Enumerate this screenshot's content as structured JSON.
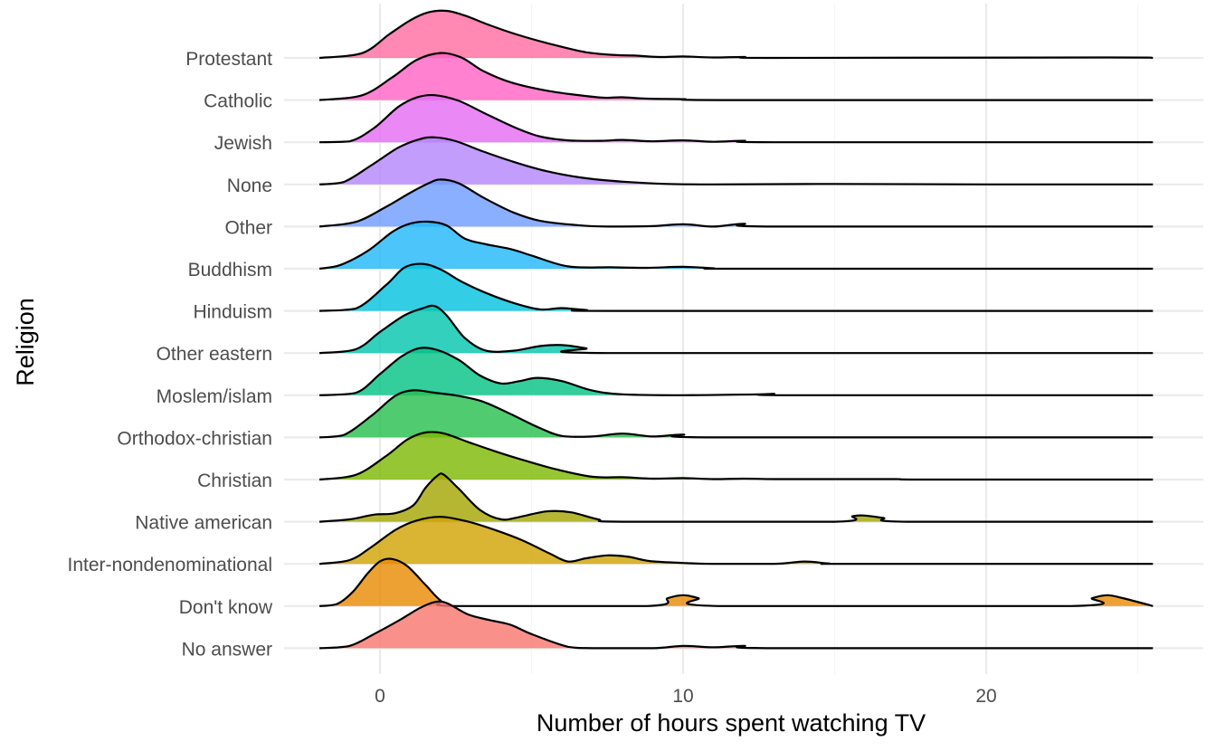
{
  "chart_data": {
    "type": "ridgeline",
    "xlabel": "Number of hours spent watching TV",
    "ylabel": "Religion",
    "xlim": [
      -3.2,
      27.2
    ],
    "x_ticks": [
      0,
      10,
      20
    ],
    "x_tick_labels": [
      "0",
      "10",
      "20"
    ],
    "x_minor_ticks": [
      5,
      15,
      25
    ],
    "grid": true,
    "legend": "none",
    "series": [
      {
        "name": "Protestant",
        "color": "#FF6C9F",
        "density": [
          [
            -2.0,
            0.0
          ],
          [
            -0.6,
            0.1
          ],
          [
            0.3,
            0.5
          ],
          [
            1.0,
            0.8
          ],
          [
            1.6,
            0.97
          ],
          [
            2.2,
            1.0
          ],
          [
            2.8,
            0.9
          ],
          [
            3.6,
            0.7
          ],
          [
            4.5,
            0.5
          ],
          [
            5.6,
            0.3
          ],
          [
            6.8,
            0.12
          ],
          [
            7.8,
            0.06
          ],
          [
            8.4,
            0.05
          ],
          [
            9.2,
            0.02
          ],
          [
            10.0,
            0.03
          ],
          [
            11.0,
            0.01
          ],
          [
            12.0,
            0.02
          ],
          [
            13.0,
            0.0
          ],
          [
            24.0,
            0.01
          ],
          [
            25.5,
            0.0
          ]
        ]
      },
      {
        "name": "Catholic",
        "color": "#FF61C4",
        "density": [
          [
            -2.0,
            0.0
          ],
          [
            -0.6,
            0.1
          ],
          [
            0.4,
            0.48
          ],
          [
            1.2,
            0.85
          ],
          [
            2.0,
            1.0
          ],
          [
            2.7,
            0.9
          ],
          [
            3.4,
            0.62
          ],
          [
            4.3,
            0.38
          ],
          [
            5.5,
            0.2
          ],
          [
            6.6,
            0.1
          ],
          [
            7.4,
            0.05
          ],
          [
            8.0,
            0.06
          ],
          [
            8.8,
            0.03
          ],
          [
            10.0,
            0.02
          ],
          [
            11.5,
            0.0
          ],
          [
            25.5,
            0.0
          ]
        ]
      },
      {
        "name": "Jewish",
        "color": "#E56AF4",
        "density": [
          [
            -2.0,
            0.0
          ],
          [
            -1.0,
            0.02
          ],
          [
            -0.2,
            0.3
          ],
          [
            0.6,
            0.75
          ],
          [
            1.2,
            0.95
          ],
          [
            1.8,
            1.0
          ],
          [
            2.6,
            0.88
          ],
          [
            3.5,
            0.6
          ],
          [
            4.5,
            0.3
          ],
          [
            5.3,
            0.12
          ],
          [
            6.2,
            0.04
          ],
          [
            7.3,
            0.03
          ],
          [
            8.0,
            0.05
          ],
          [
            9.0,
            0.02
          ],
          [
            10.0,
            0.04
          ],
          [
            11.0,
            0.01
          ],
          [
            12.0,
            0.03
          ],
          [
            13.0,
            0.0
          ],
          [
            25.5,
            0.0
          ]
        ]
      },
      {
        "name": "None",
        "color": "#B384FA",
        "density": [
          [
            -2.0,
            0.0
          ],
          [
            -1.2,
            0.05
          ],
          [
            -0.3,
            0.4
          ],
          [
            0.6,
            0.78
          ],
          [
            1.3,
            0.96
          ],
          [
            1.8,
            1.0
          ],
          [
            2.5,
            0.92
          ],
          [
            3.4,
            0.7
          ],
          [
            4.4,
            0.48
          ],
          [
            5.5,
            0.28
          ],
          [
            6.8,
            0.13
          ],
          [
            8.2,
            0.05
          ],
          [
            9.5,
            0.01
          ],
          [
            11.0,
            0.0
          ],
          [
            15.0,
            0.01
          ],
          [
            20.0,
            0.0
          ],
          [
            25.5,
            0.0
          ]
        ]
      },
      {
        "name": "Other",
        "color": "#6E9BFF",
        "density": [
          [
            -2.0,
            0.0
          ],
          [
            -0.8,
            0.1
          ],
          [
            0.2,
            0.42
          ],
          [
            1.0,
            0.72
          ],
          [
            1.6,
            0.92
          ],
          [
            2.0,
            1.0
          ],
          [
            2.6,
            0.92
          ],
          [
            3.4,
            0.62
          ],
          [
            4.4,
            0.3
          ],
          [
            5.3,
            0.12
          ],
          [
            6.5,
            0.03
          ],
          [
            7.5,
            0.0
          ],
          [
            9.0,
            0.01
          ],
          [
            10.0,
            0.05
          ],
          [
            11.0,
            0.0
          ],
          [
            12.0,
            0.06
          ],
          [
            13.0,
            0.0
          ],
          [
            25.5,
            0.0
          ]
        ]
      },
      {
        "name": "Buddhism",
        "color": "#1FB8F9",
        "density": [
          [
            -2.0,
            0.0
          ],
          [
            -1.3,
            0.08
          ],
          [
            -0.4,
            0.38
          ],
          [
            0.4,
            0.78
          ],
          [
            1.0,
            0.96
          ],
          [
            1.6,
            1.0
          ],
          [
            2.2,
            0.92
          ],
          [
            2.8,
            0.64
          ],
          [
            3.5,
            0.52
          ],
          [
            4.3,
            0.42
          ],
          [
            5.0,
            0.28
          ],
          [
            6.2,
            0.05
          ],
          [
            7.6,
            0.03
          ],
          [
            8.8,
            0.02
          ],
          [
            10.0,
            0.04
          ],
          [
            11.0,
            0.01
          ],
          [
            12.0,
            0.0
          ],
          [
            25.5,
            0.0
          ]
        ]
      },
      {
        "name": "Hinduism",
        "color": "#00C0E0",
        "density": [
          [
            -2.0,
            0.0
          ],
          [
            -0.8,
            0.05
          ],
          [
            0.2,
            0.55
          ],
          [
            0.8,
            0.92
          ],
          [
            1.4,
            1.0
          ],
          [
            2.0,
            0.88
          ],
          [
            2.7,
            0.62
          ],
          [
            3.5,
            0.38
          ],
          [
            4.5,
            0.15
          ],
          [
            5.3,
            0.03
          ],
          [
            6.0,
            0.06
          ],
          [
            6.8,
            0.02
          ],
          [
            8.0,
            0.0
          ],
          [
            25.5,
            0.0
          ]
        ]
      },
      {
        "name": "Other eastern",
        "color": "#00C4AE",
        "density": [
          [
            -2.0,
            0.0
          ],
          [
            -0.8,
            0.08
          ],
          [
            0.0,
            0.45
          ],
          [
            0.8,
            0.8
          ],
          [
            1.4,
            0.95
          ],
          [
            1.8,
            1.0
          ],
          [
            2.2,
            0.8
          ],
          [
            2.8,
            0.32
          ],
          [
            3.5,
            0.05
          ],
          [
            4.4,
            0.05
          ],
          [
            5.3,
            0.15
          ],
          [
            6.0,
            0.17
          ],
          [
            6.8,
            0.1
          ],
          [
            7.5,
            0.0
          ],
          [
            25.5,
            0.0
          ]
        ]
      },
      {
        "name": "Moslem/islam",
        "color": "#00C283",
        "density": [
          [
            -2.0,
            0.0
          ],
          [
            -0.8,
            0.05
          ],
          [
            0.0,
            0.45
          ],
          [
            0.7,
            0.82
          ],
          [
            1.3,
            1.0
          ],
          [
            1.9,
            0.96
          ],
          [
            2.6,
            0.75
          ],
          [
            3.3,
            0.42
          ],
          [
            4.0,
            0.25
          ],
          [
            4.6,
            0.3
          ],
          [
            5.2,
            0.37
          ],
          [
            6.0,
            0.3
          ],
          [
            7.0,
            0.1
          ],
          [
            8.0,
            0.02
          ],
          [
            10.0,
            0.0
          ],
          [
            12.5,
            0.02
          ],
          [
            13.0,
            0.03
          ],
          [
            13.5,
            0.0
          ],
          [
            25.5,
            0.0
          ]
        ]
      },
      {
        "name": "Orthodox-christian",
        "color": "#24BE4C",
        "density": [
          [
            -2.0,
            0.0
          ],
          [
            -1.2,
            0.05
          ],
          [
            -0.3,
            0.45
          ],
          [
            0.5,
            0.88
          ],
          [
            1.1,
            1.0
          ],
          [
            1.8,
            0.95
          ],
          [
            2.6,
            0.88
          ],
          [
            3.4,
            0.76
          ],
          [
            4.3,
            0.5
          ],
          [
            5.2,
            0.22
          ],
          [
            6.0,
            0.03
          ],
          [
            7.0,
            0.02
          ],
          [
            8.0,
            0.08
          ],
          [
            9.0,
            0.02
          ],
          [
            10.0,
            0.06
          ],
          [
            11.0,
            0.0
          ],
          [
            25.5,
            0.0
          ]
        ]
      },
      {
        "name": "Christian",
        "color": "#7CB800",
        "density": [
          [
            -2.0,
            0.0
          ],
          [
            -0.8,
            0.1
          ],
          [
            0.2,
            0.5
          ],
          [
            0.9,
            0.85
          ],
          [
            1.5,
            1.0
          ],
          [
            2.1,
            0.98
          ],
          [
            2.9,
            0.8
          ],
          [
            3.8,
            0.6
          ],
          [
            4.8,
            0.4
          ],
          [
            5.8,
            0.22
          ],
          [
            7.0,
            0.06
          ],
          [
            8.0,
            0.05
          ],
          [
            9.0,
            0.02
          ],
          [
            10.0,
            0.03
          ],
          [
            11.0,
            0.01
          ],
          [
            12.0,
            0.02
          ],
          [
            13.0,
            0.01
          ],
          [
            15.0,
            0.01
          ],
          [
            17.0,
            0.01
          ],
          [
            18.0,
            0.0
          ],
          [
            25.5,
            0.0
          ]
        ]
      },
      {
        "name": "Native american",
        "color": "#A3A500",
        "density": [
          [
            -2.0,
            0.0
          ],
          [
            -1.0,
            0.05
          ],
          [
            -0.2,
            0.15
          ],
          [
            0.5,
            0.18
          ],
          [
            1.1,
            0.35
          ],
          [
            1.5,
            0.72
          ],
          [
            1.9,
            0.98
          ],
          [
            2.1,
            1.0
          ],
          [
            2.6,
            0.7
          ],
          [
            3.3,
            0.25
          ],
          [
            4.0,
            0.05
          ],
          [
            4.6,
            0.1
          ],
          [
            5.5,
            0.22
          ],
          [
            6.3,
            0.2
          ],
          [
            7.2,
            0.05
          ],
          [
            8.0,
            0.0
          ],
          [
            15.0,
            0.0
          ],
          [
            15.6,
            0.12
          ],
          [
            16.0,
            0.13
          ],
          [
            16.6,
            0.08
          ],
          [
            17.4,
            0.0
          ],
          [
            25.5,
            0.0
          ]
        ]
      },
      {
        "name": "Inter-nondenominational",
        "color": "#CFA200",
        "density": [
          [
            -2.0,
            0.0
          ],
          [
            -1.0,
            0.08
          ],
          [
            -0.3,
            0.35
          ],
          [
            0.5,
            0.72
          ],
          [
            1.2,
            0.92
          ],
          [
            2.0,
            1.0
          ],
          [
            2.9,
            0.9
          ],
          [
            3.8,
            0.72
          ],
          [
            4.7,
            0.5
          ],
          [
            5.6,
            0.22
          ],
          [
            6.2,
            0.05
          ],
          [
            6.8,
            0.12
          ],
          [
            7.5,
            0.18
          ],
          [
            8.2,
            0.15
          ],
          [
            8.9,
            0.06
          ],
          [
            10.0,
            0.02
          ],
          [
            11.0,
            0.0
          ],
          [
            13.0,
            0.0
          ],
          [
            14.0,
            0.05
          ],
          [
            14.8,
            0.01
          ],
          [
            15.5,
            0.0
          ],
          [
            25.5,
            0.0
          ]
        ]
      },
      {
        "name": "Don't know",
        "color": "#E88A00",
        "density": [
          [
            -2.0,
            0.0
          ],
          [
            -1.4,
            0.05
          ],
          [
            -0.9,
            0.3
          ],
          [
            -0.4,
            0.7
          ],
          [
            0.0,
            0.95
          ],
          [
            0.4,
            1.0
          ],
          [
            0.9,
            0.85
          ],
          [
            1.5,
            0.45
          ],
          [
            2.0,
            0.12
          ],
          [
            2.5,
            0.0
          ],
          [
            8.8,
            0.0
          ],
          [
            9.5,
            0.17
          ],
          [
            10.0,
            0.23
          ],
          [
            10.5,
            0.17
          ],
          [
            11.2,
            0.0
          ],
          [
            22.8,
            0.0
          ],
          [
            23.5,
            0.17
          ],
          [
            24.0,
            0.23
          ],
          [
            24.5,
            0.17
          ],
          [
            25.5,
            0.0
          ]
        ]
      },
      {
        "name": "No answer",
        "color": "#F8766D",
        "density": [
          [
            -2.0,
            0.0
          ],
          [
            -1.0,
            0.05
          ],
          [
            -0.2,
            0.3
          ],
          [
            0.6,
            0.58
          ],
          [
            1.3,
            0.85
          ],
          [
            1.8,
            0.98
          ],
          [
            2.2,
            0.96
          ],
          [
            2.9,
            0.72
          ],
          [
            3.6,
            0.6
          ],
          [
            4.3,
            0.5
          ],
          [
            5.0,
            0.3
          ],
          [
            6.2,
            0.03
          ],
          [
            7.0,
            0.0
          ],
          [
            9.0,
            0.0
          ],
          [
            10.0,
            0.05
          ],
          [
            11.0,
            0.02
          ],
          [
            12.0,
            0.05
          ],
          [
            13.0,
            0.0
          ],
          [
            25.5,
            0.0
          ]
        ]
      }
    ]
  }
}
